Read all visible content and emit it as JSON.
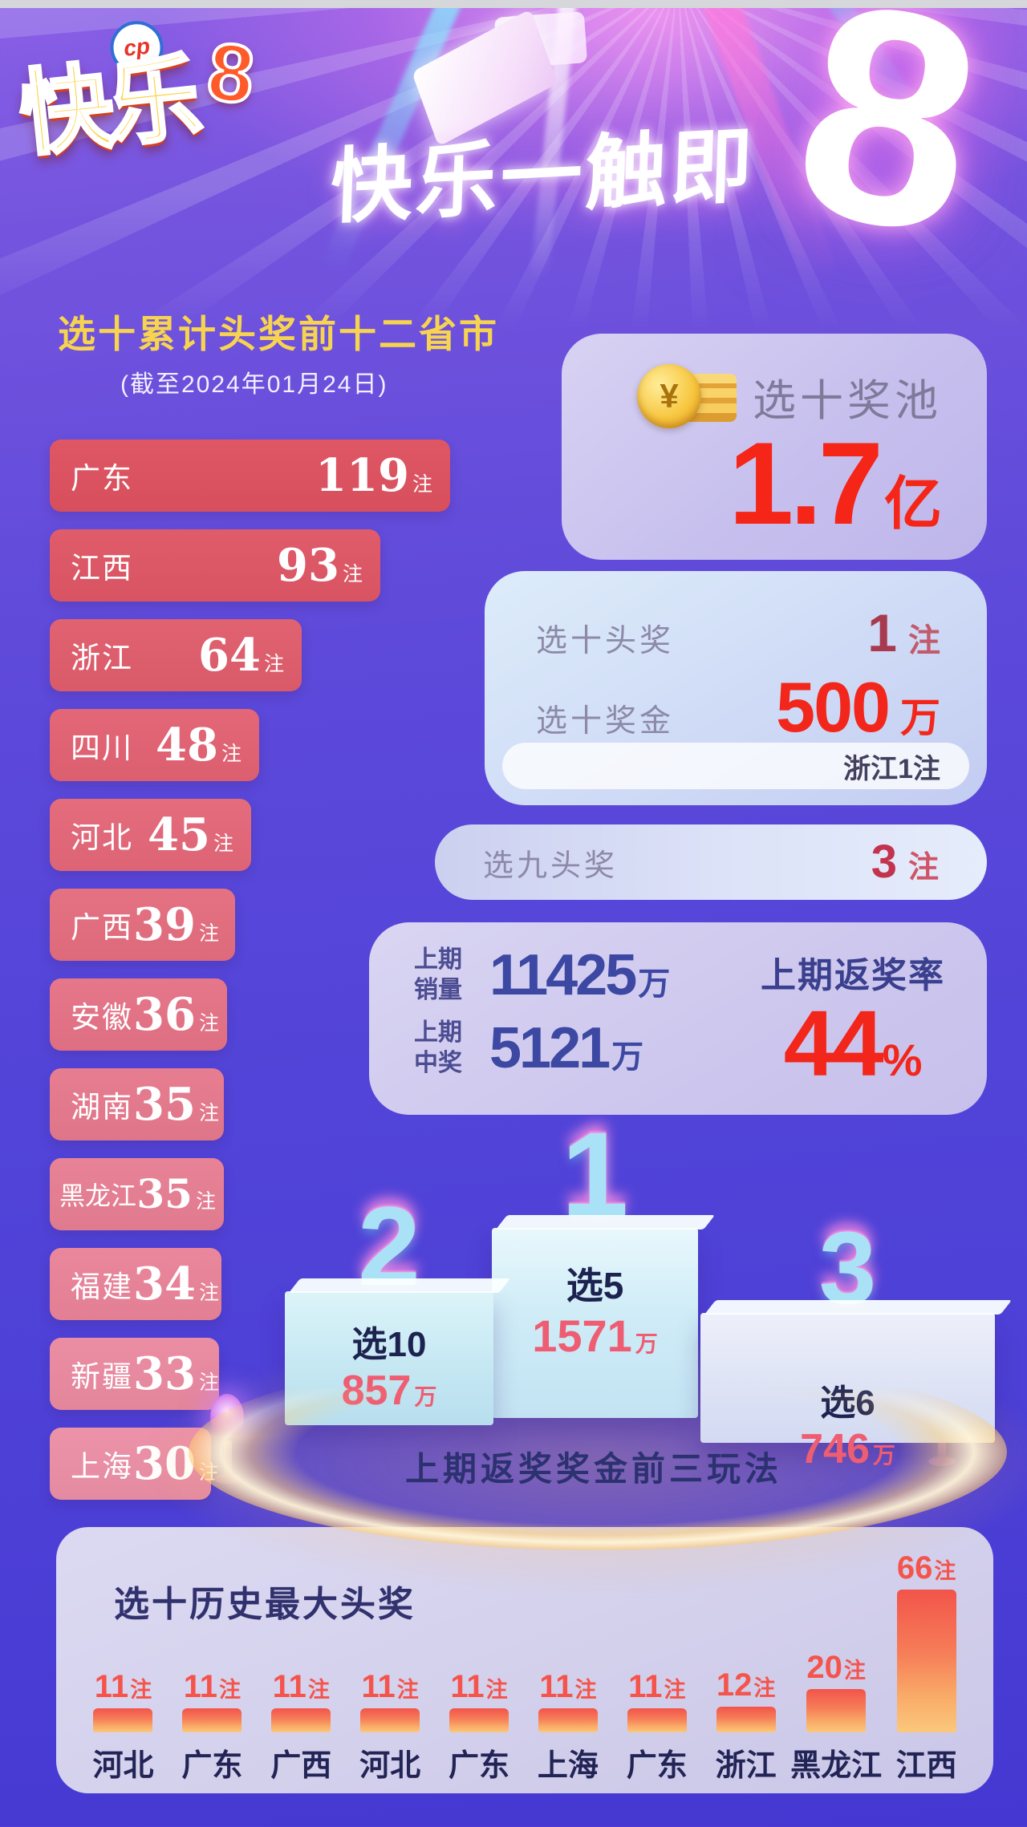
{
  "colors": {
    "accent_red": "#f2261b",
    "gold_title": "#f7d44f",
    "left_bar_red": "#df5764",
    "left_bar_pink": "#ec92a9",
    "history_bar_top": "#f2544a",
    "history_bar_bottom": "#fbc87c",
    "indigo_number": "#3c48a2",
    "card_lavender": "#cdc7ee",
    "background_blue": "#5244d8"
  },
  "header": {
    "logo": {
      "badge": "cp",
      "brand": "快乐",
      "brand_8": "8"
    },
    "slogan": "快乐一触即",
    "big_eight": "8"
  },
  "left_chart": {
    "title": "选十累计头奖前十二省市",
    "subtitle": "(截至2024年01月24日)",
    "unit": "注",
    "bars": [
      {
        "province": "广东",
        "value": 119
      },
      {
        "province": "江西",
        "value": 93
      },
      {
        "province": "浙江",
        "value": 64
      },
      {
        "province": "四川",
        "value": 48
      },
      {
        "province": "河北",
        "value": 45
      },
      {
        "province": "广西",
        "value": 39
      },
      {
        "province": "安徽",
        "value": 36
      },
      {
        "province": "湖南",
        "value": 35
      },
      {
        "province": "黑龙江",
        "value": 35
      },
      {
        "province": "福建",
        "value": 34
      },
      {
        "province": "新疆",
        "value": 33
      },
      {
        "province": "上海",
        "value": 30
      }
    ]
  },
  "pool_card": {
    "coin_symbol": "¥",
    "label": "选十奖池",
    "value": "1.7",
    "unit": "亿"
  },
  "prize_card": {
    "rows": [
      {
        "label": "选十头奖",
        "value": "1",
        "unit": "注"
      },
      {
        "label": "选十奖金",
        "value": "500",
        "unit": "万"
      }
    ],
    "pill": "浙江1注"
  },
  "pick9_card": {
    "label": "选九头奖",
    "value": "3",
    "unit": "注"
  },
  "stats_card": {
    "rows": [
      {
        "label_line1": "上期",
        "label_line2": "销量",
        "value": "11425",
        "unit": "万"
      },
      {
        "label_line1": "上期",
        "label_line2": "中奖",
        "value": "5121",
        "unit": "万"
      }
    ],
    "rate_label": "上期返奖率",
    "rate_value": "44",
    "rate_unit": "%"
  },
  "podium": {
    "caption": "上期返奖奖金前三玩法",
    "items": [
      {
        "rank": "1",
        "game": "选5",
        "value": "1571",
        "unit": "万"
      },
      {
        "rank": "2",
        "game": "选10",
        "value": "857",
        "unit": "万"
      },
      {
        "rank": "3",
        "game": "选6",
        "value": "746",
        "unit": "万"
      }
    ]
  },
  "history_chart": {
    "title": "选十历史最大头奖",
    "unit": "注",
    "bars": [
      {
        "province": "河北",
        "value": 11
      },
      {
        "province": "广东",
        "value": 11
      },
      {
        "province": "广西",
        "value": 11
      },
      {
        "province": "河北",
        "value": 11
      },
      {
        "province": "广东",
        "value": 11
      },
      {
        "province": "上海",
        "value": 11
      },
      {
        "province": "广东",
        "value": 11
      },
      {
        "province": "浙江",
        "value": 12
      },
      {
        "province": "黑龙江",
        "value": 20
      },
      {
        "province": "江西",
        "value": 66
      }
    ]
  },
  "chart_data": [
    {
      "type": "bar",
      "orientation": "horizontal",
      "title": "选十累计头奖前十二省市",
      "subtitle": "(截至2024年01月24日)",
      "categories": [
        "广东",
        "江西",
        "浙江",
        "四川",
        "河北",
        "广西",
        "安徽",
        "湖南",
        "黑龙江",
        "福建",
        "新疆",
        "上海"
      ],
      "values": [
        119,
        93,
        64,
        48,
        45,
        39,
        36,
        35,
        35,
        34,
        33,
        30
      ],
      "unit": "注",
      "xlabel": "",
      "ylabel": "",
      "legend": false
    },
    {
      "type": "bar",
      "orientation": "vertical",
      "title": "选十历史最大头奖",
      "categories": [
        "河北",
        "广东",
        "广西",
        "河北",
        "广东",
        "上海",
        "广东",
        "浙江",
        "黑龙江",
        "江西"
      ],
      "values": [
        11,
        11,
        11,
        11,
        11,
        11,
        11,
        12,
        20,
        66
      ],
      "unit": "注",
      "xlabel": "",
      "ylabel": "",
      "legend": false
    },
    {
      "type": "bar",
      "orientation": "podium",
      "title": "上期返奖奖金前三玩法",
      "categories": [
        "选5",
        "选10",
        "选6"
      ],
      "values": [
        1571,
        857,
        746
      ],
      "unit": "万",
      "legend": false
    }
  ]
}
